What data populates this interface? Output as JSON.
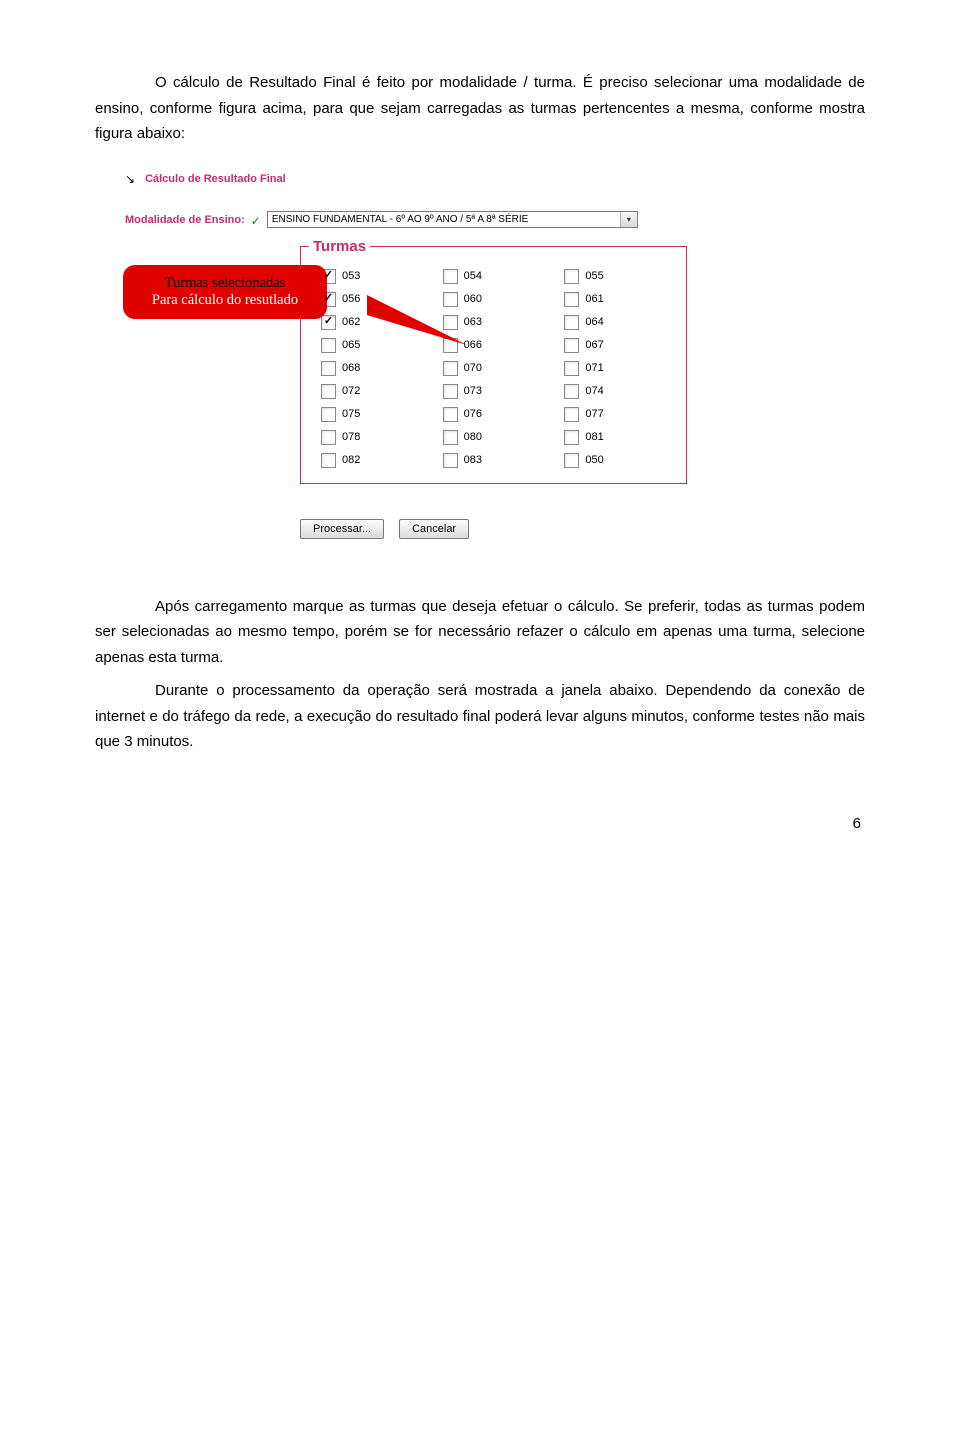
{
  "intro": {
    "p1": "O cálculo de Resultado Final é feito por modalidade / turma. É preciso selecionar uma modalidade de ensino, conforme figura acima, para que sejam carregadas as turmas pertencentes a mesma, conforme mostra figura abaixo:"
  },
  "nav": {
    "arrow": "↘",
    "title": "Cálculo de Resultado Final"
  },
  "form": {
    "label": "Modalidade de Ensino:",
    "checkmark": "✓",
    "select_value": "ENSINO FUNDAMENTAL - 6º AO 9º ANO / 5ª A 8ª SÉRIE",
    "select_arrow": "▾"
  },
  "callout": {
    "line1": "Turmas selecionadas",
    "line2": "Para cálculo do resutlado"
  },
  "turmas": {
    "legend": "Turmas",
    "items": [
      {
        "label": "053",
        "checked": true
      },
      {
        "label": "054",
        "checked": false
      },
      {
        "label": "055",
        "checked": false
      },
      {
        "label": "056",
        "checked": true
      },
      {
        "label": "060",
        "checked": false
      },
      {
        "label": "061",
        "checked": false
      },
      {
        "label": "062",
        "checked": true
      },
      {
        "label": "063",
        "checked": false
      },
      {
        "label": "064",
        "checked": false
      },
      {
        "label": "065",
        "checked": false
      },
      {
        "label": "066",
        "checked": false
      },
      {
        "label": "067",
        "checked": false
      },
      {
        "label": "068",
        "checked": false
      },
      {
        "label": "070",
        "checked": false
      },
      {
        "label": "071",
        "checked": false
      },
      {
        "label": "072",
        "checked": false
      },
      {
        "label": "073",
        "checked": false
      },
      {
        "label": "074",
        "checked": false
      },
      {
        "label": "075",
        "checked": false
      },
      {
        "label": "076",
        "checked": false
      },
      {
        "label": "077",
        "checked": false
      },
      {
        "label": "078",
        "checked": false
      },
      {
        "label": "080",
        "checked": false
      },
      {
        "label": "081",
        "checked": false
      },
      {
        "label": "082",
        "checked": false
      },
      {
        "label": "083",
        "checked": false
      },
      {
        "label": "050",
        "checked": false
      }
    ]
  },
  "buttons": {
    "process": "Processar...",
    "cancel": "Cancelar"
  },
  "after": {
    "p1": "Após carregamento marque as turmas que deseja efetuar o cálculo. Se preferir, todas as turmas podem ser selecionadas ao mesmo tempo, porém se for necessário refazer o cálculo em apenas uma turma, selecione apenas esta turma.",
    "p2": "Durante o processamento da operação será mostrada a janela abaixo. Dependendo da conexão de internet e do tráfego da rede, a execução do resultado final poderá levar alguns minutos, conforme testes não mais que 3 minutos."
  },
  "page_number": "6"
}
